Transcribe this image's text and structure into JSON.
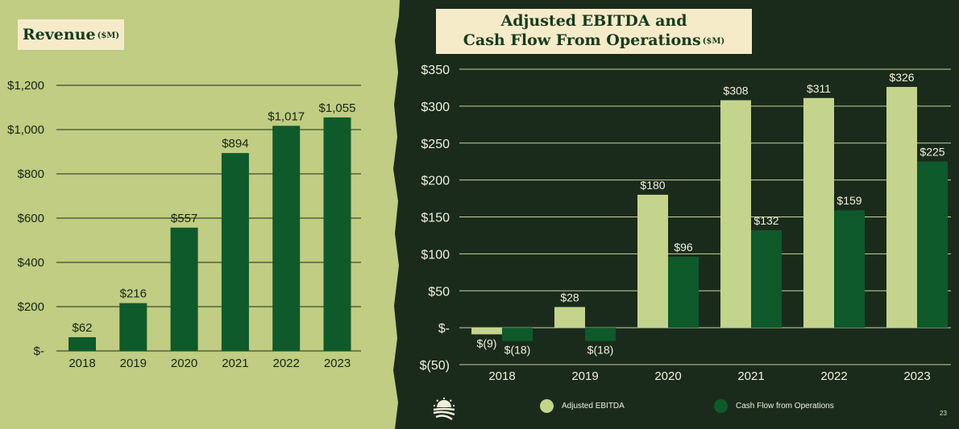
{
  "colors": {
    "left_bg": "#c0cd82",
    "right_bg": "#1a2b1c",
    "revenue_bar": "#0e5a2b",
    "ebitda_bar": "#c4d48c",
    "cfo_bar": "#0e5a2b",
    "title_box": "#f5ebc9",
    "title_text": "#163b1e"
  },
  "revenue": {
    "title": "Revenue",
    "unit": "($M)"
  },
  "ebitda": {
    "title_line1": "Adjusted EBITDA and",
    "title_line2": "Cash Flow From Operations",
    "unit": "($M)"
  },
  "legend": {
    "ebitda_label": "Adjusted EBITDA",
    "cfo_label": "Cash Flow from Operations"
  },
  "page_number": "23",
  "logo_icon": "sunrise-field-icon",
  "chart_data": [
    {
      "type": "bar",
      "title": "Revenue ($M)",
      "categories": [
        "2018",
        "2019",
        "2020",
        "2021",
        "2022",
        "2023"
      ],
      "values": [
        62,
        216,
        557,
        894,
        1017,
        1055
      ],
      "data_labels": [
        "$62",
        "$216",
        "$557",
        "$894",
        "$1,017",
        "$1,055"
      ],
      "y_ticks": [
        0,
        200,
        400,
        600,
        800,
        1000,
        1200
      ],
      "y_tick_labels": [
        "$-",
        "$200",
        "$400",
        "$600",
        "$800",
        "$1,000",
        "$1,200"
      ],
      "ylim": [
        0,
        1200
      ],
      "grid": true
    },
    {
      "type": "bar",
      "title": "Adjusted EBITDA and Cash Flow From Operations ($M)",
      "categories": [
        "2018",
        "2019",
        "2020",
        "2021",
        "2022",
        "2023"
      ],
      "series": [
        {
          "name": "Adjusted EBITDA",
          "values": [
            -9,
            28,
            180,
            308,
            311,
            326
          ],
          "data_labels": [
            "$(9)",
            "$28",
            "$180",
            "$308",
            "$311",
            "$326"
          ]
        },
        {
          "name": "Cash Flow from Operations",
          "values": [
            -18,
            -18,
            96,
            132,
            159,
            225
          ],
          "data_labels": [
            "$(18)",
            "$(18)",
            "$96",
            "$132",
            "$159",
            "$225"
          ]
        }
      ],
      "y_ticks": [
        -50,
        0,
        50,
        100,
        150,
        200,
        250,
        300,
        350
      ],
      "y_tick_labels": [
        "$(50)",
        "$-",
        "$50",
        "$100",
        "$150",
        "$200",
        "$250",
        "$300",
        "$350"
      ],
      "ylim": [
        -50,
        350
      ],
      "grid": true,
      "legend_position": "bottom"
    }
  ]
}
